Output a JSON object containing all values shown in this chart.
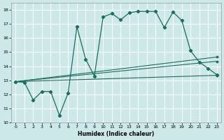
{
  "xlabel": "Humidex (Indice chaleur)",
  "bg_color": "#cce8e8",
  "grid_color": "#ffffff",
  "line_color": "#1a6e60",
  "xlim": [
    -0.5,
    23.5
  ],
  "ylim": [
    10,
    18.5
  ],
  "xticks": [
    0,
    1,
    2,
    3,
    4,
    5,
    6,
    7,
    8,
    9,
    10,
    11,
    12,
    13,
    14,
    15,
    16,
    17,
    18,
    19,
    20,
    21,
    22,
    23
  ],
  "yticks": [
    10,
    11,
    12,
    13,
    14,
    15,
    16,
    17,
    18
  ],
  "line1_x": [
    0,
    1,
    2,
    3,
    4,
    5,
    6,
    7,
    8,
    9,
    10,
    11,
    12,
    13,
    14,
    15,
    16,
    17,
    18,
    19,
    20,
    21,
    22,
    23
  ],
  "line1_y": [
    12.9,
    12.85,
    11.6,
    12.2,
    12.2,
    10.5,
    12.1,
    16.8,
    14.5,
    13.3,
    17.5,
    17.75,
    17.3,
    17.8,
    17.9,
    17.9,
    17.9,
    16.75,
    17.85,
    17.25,
    15.1,
    14.3,
    13.85,
    13.4
  ],
  "line2_x": [
    0,
    23
  ],
  "line2_y": [
    12.9,
    14.65
  ],
  "line3_x": [
    0,
    23
  ],
  "line3_y": [
    12.9,
    14.35
  ],
  "line4_x": [
    0,
    23
  ],
  "line4_y": [
    12.9,
    13.35
  ]
}
